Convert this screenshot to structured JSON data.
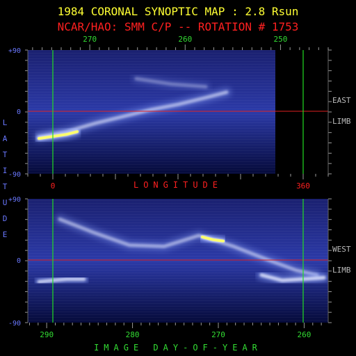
{
  "chart_data": {
    "type": "heatmap",
    "title": "1984 CORONAL SYNOPTIC MAP : 2.8 Rsun",
    "subtitle": "NCAR/HAO: SMM C/P -- ROTATION # 1753",
    "ylabel": "LATITUDE",
    "xlabel_middle": "LONGITUDE",
    "xlabel_bottom": "IMAGE DAY-OF-YEAR",
    "ylim": [
      -90,
      90
    ],
    "y_ticks": [
      "+90",
      "0",
      "-90"
    ],
    "panels": [
      {
        "name": "east",
        "side_labels": [
          "EAST",
          "LIMB"
        ],
        "top_axis": {
          "labels": [
            "270",
            "260",
            "250"
          ],
          "values": [
            270,
            260,
            250
          ],
          "range": [
            276.5,
            245
          ]
        },
        "bottom_axis": {
          "labels": [
            "0",
            "360"
          ],
          "values": [
            0,
            360
          ],
          "range": [
            -36,
            396
          ]
        },
        "marker_lines_longitude": [
          0,
          360
        ],
        "equator": 0,
        "data_gap_from_longitude": 320,
        "features": [
          {
            "name": "streamer-belt",
            "path": [
              [
                -20,
                -38
              ],
              [
                20,
                -30
              ],
              [
                60,
                -18
              ],
              [
                100,
                -8
              ],
              [
                140,
                2
              ],
              [
                180,
                10
              ],
              [
                220,
                20
              ],
              [
                250,
                28
              ]
            ],
            "intensity": 0.65
          },
          {
            "name": "bright-core",
            "path": [
              [
                -20,
                -40
              ],
              [
                0,
                -37
              ],
              [
                20,
                -34
              ],
              [
                35,
                -30
              ]
            ],
            "intensity": 1.0
          },
          {
            "name": "secondary-arc",
            "path": [
              [
                120,
                48
              ],
              [
                170,
                40
              ],
              [
                220,
                36
              ]
            ],
            "intensity": 0.35
          }
        ]
      },
      {
        "name": "west",
        "side_labels": [
          "WEST",
          "LIMB"
        ],
        "bottom_axis": {
          "labels": [
            "290",
            "280",
            "270",
            "260"
          ],
          "values": [
            290,
            280,
            270,
            260
          ],
          "range": [
            292.2,
            257.2
          ]
        },
        "marker_lines_longitude": [
          0,
          360
        ],
        "equator": 0,
        "features": [
          {
            "name": "arc-west-1",
            "path": [
              [
                -20,
                -32
              ],
              [
                0,
                -30
              ],
              [
                20,
                -28
              ],
              [
                45,
                -28
              ]
            ],
            "intensity": 0.85
          },
          {
            "name": "arc-mid",
            "path": [
              [
                10,
                60
              ],
              [
                60,
                40
              ],
              [
                110,
                22
              ],
              [
                160,
                20
              ],
              [
                210,
                36
              ],
              [
                260,
                20
              ],
              [
                310,
                0
              ],
              [
                350,
                -15
              ],
              [
                380,
                -22
              ]
            ],
            "intensity": 0.6
          },
          {
            "name": "bright-patch",
            "path": [
              [
                215,
                34
              ],
              [
                230,
                30
              ],
              [
                245,
                28
              ]
            ],
            "intensity": 0.95
          },
          {
            "name": "arc-east",
            "path": [
              [
                300,
                -22
              ],
              [
                330,
                -30
              ],
              [
                360,
                -28
              ],
              [
                390,
                -26
              ]
            ],
            "intensity": 0.9
          }
        ]
      }
    ]
  }
}
